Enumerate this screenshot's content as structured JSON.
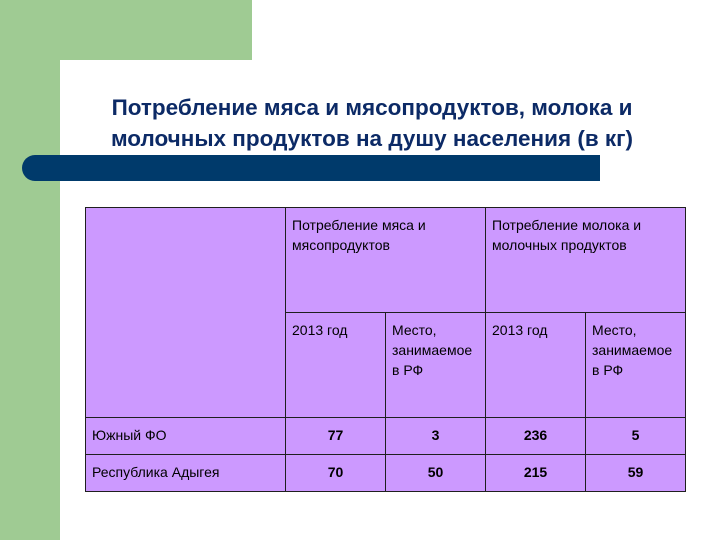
{
  "slide": {
    "title_line1": "Потребление мяса и мясопродуктов, молока и",
    "title_line2": "молочных продуктов на душу населения (в кг)"
  },
  "colors": {
    "background": "#ffffff",
    "green_accent": "#9fcb93",
    "title_bar": "#003a6b",
    "title_text": "#0c2a66",
    "table_fill": "#cc99ff"
  },
  "table": {
    "header": {
      "meat": "Потребление мяса и мясопродуктов",
      "milk": "Потребление молока и молочных продуктов",
      "year_meat": "2013 год",
      "place_meat": "Место, занимаемое в РФ",
      "year_milk": "2013 год",
      "place_milk": "Место, занимаемое в РФ"
    },
    "rows": [
      {
        "region": "Южный ФО",
        "meat_2013": "77",
        "meat_place": "3",
        "milk_2013": "236",
        "milk_place": "5"
      },
      {
        "region": "Республика Адыгея",
        "meat_2013": "70",
        "meat_place": "50",
        "milk_2013": "215",
        "milk_place": "59"
      }
    ]
  }
}
